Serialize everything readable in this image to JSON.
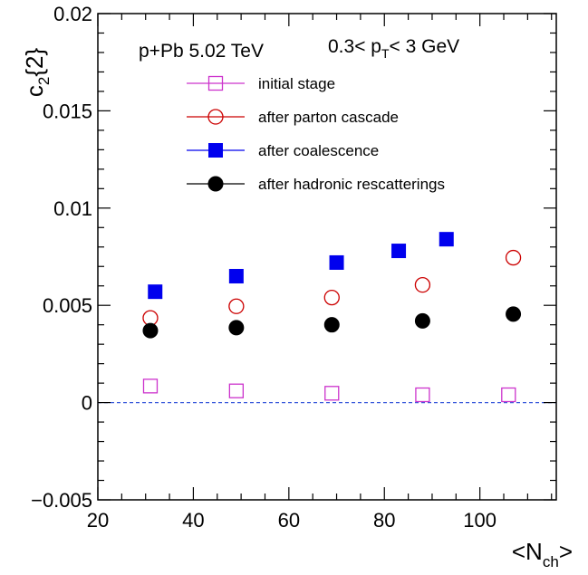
{
  "chart_data": {
    "type": "scatter",
    "annotation": {
      "system": "p+Pb 5.02 TeV",
      "cut_prefix": "0.3< p",
      "cut_sub": "T",
      "cut_suffix": "< 3 GeV"
    },
    "ylabel": {
      "main": "c",
      "sub": "2",
      "rest": "{2}"
    },
    "xlabel": {
      "main": "<N",
      "sub": "ch",
      "rest": ">"
    },
    "xlim": [
      20,
      116
    ],
    "ylim": [
      -0.005,
      0.02
    ],
    "xticks": [
      {
        "value": 20,
        "label": "20"
      },
      {
        "value": 40,
        "label": "40"
      },
      {
        "value": 60,
        "label": "60"
      },
      {
        "value": 80,
        "label": "80"
      },
      {
        "value": 100,
        "label": "100"
      }
    ],
    "yticks": [
      {
        "value": -0.005,
        "label": "−0.005"
      },
      {
        "value": 0,
        "label": "0"
      },
      {
        "value": 0.005,
        "label": "0.005"
      },
      {
        "value": 0.01,
        "label": "0.01"
      },
      {
        "value": 0.015,
        "label": "0.015"
      },
      {
        "value": 0.02,
        "label": "0.02"
      }
    ],
    "reference_line": {
      "y": 0,
      "color": "#3b5bdb",
      "style": "dashed"
    },
    "series": [
      {
        "name": "initial stage",
        "marker": "open-square",
        "color": "#cc33cc",
        "x": [
          31,
          49,
          69,
          88,
          106
        ],
        "y": [
          0.00085,
          0.0006,
          0.00048,
          0.0004,
          0.0004
        ]
      },
      {
        "name": "after parton cascade",
        "marker": "open-circle",
        "color": "#cc0000",
        "x": [
          31,
          49,
          69,
          88,
          107
        ],
        "y": [
          0.00435,
          0.00495,
          0.0054,
          0.00605,
          0.00745
        ]
      },
      {
        "name": "after coalescence",
        "marker": "filled-square",
        "color": "#0000ee",
        "x": [
          32,
          49,
          70,
          83,
          93
        ],
        "y": [
          0.0057,
          0.0065,
          0.0072,
          0.0078,
          0.0084
        ]
      },
      {
        "name": "after hadronic rescatterings",
        "marker": "filled-circle",
        "color": "#000000",
        "x": [
          31,
          49,
          69,
          88,
          107
        ],
        "y": [
          0.0037,
          0.00385,
          0.004,
          0.0042,
          0.00455
        ]
      }
    ]
  }
}
